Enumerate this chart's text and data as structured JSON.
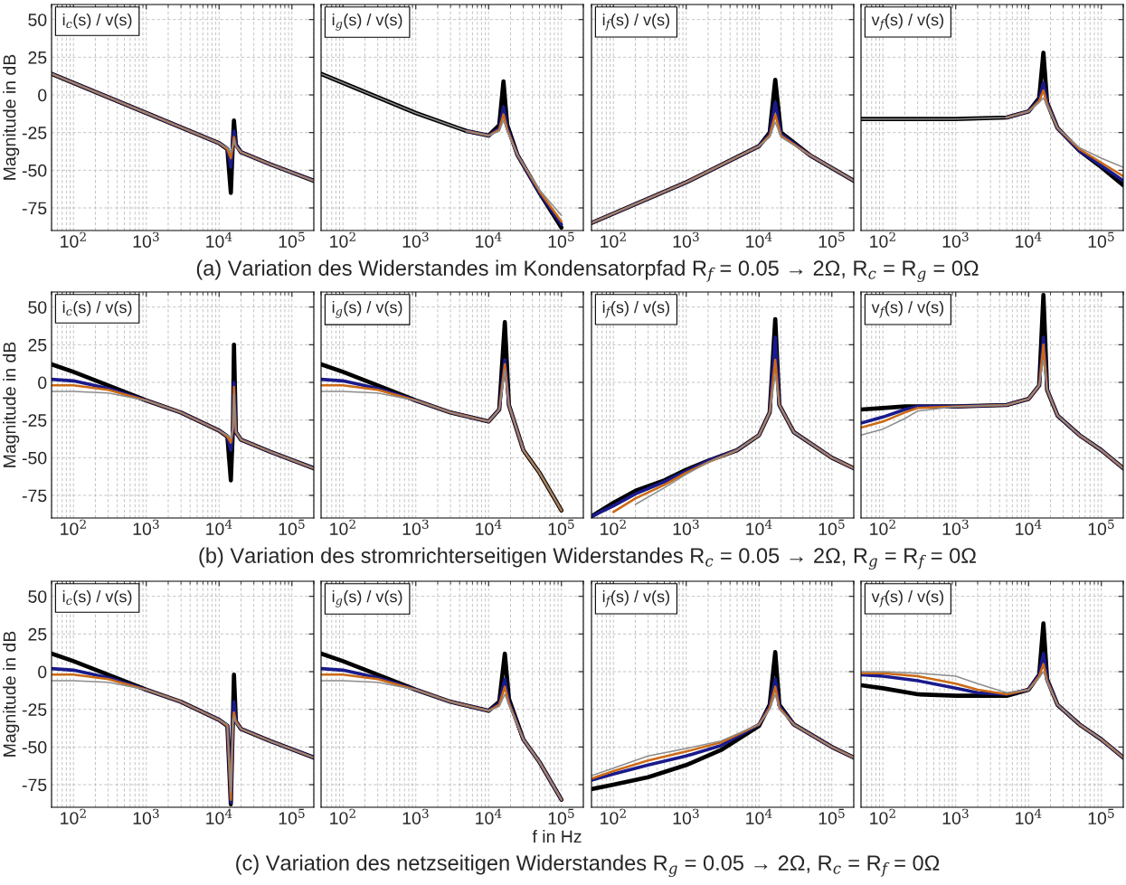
{
  "chart_data": [
    {
      "type": "line",
      "ylabel": "Magnitude in dB",
      "annotations": [
        "i$_{c}$(s) / v(s)",
        "(a) Variation des Widerstandes im Kondensatorpfad R$_{f}$ = 0.05 → 2Ω, R$_{c}$ = R$_{g}$ = 0Ω"
      ],
      "log": "x",
      "grid": true,
      "xlim": [
        50,
        200000
      ],
      "ylim": [
        -90,
        60
      ],
      "xticks": [
        {
          "value": 100,
          "label": "10$^{2}$"
        },
        {
          "value": 1000,
          "label": "10$^{3}$"
        },
        {
          "value": 10000,
          "label": "10$^{4}$"
        },
        {
          "value": 100000,
          "label": "10$^{5}$"
        }
      ],
      "yticks": [
        -75,
        -50,
        -25,
        0,
        25,
        50
      ],
      "x": [
        50,
        1000,
        10000,
        13000,
        14500,
        15500,
        16000,
        17000,
        20000,
        50000,
        200000
      ],
      "series": [
        {
          "color": "#000000",
          "values": [
            14,
            -12,
            -32,
            -36,
            -65,
            -30,
            -17,
            -33,
            -38,
            -46,
            -57
          ]
        },
        {
          "color": "#1a1a8c",
          "values": [
            14,
            -12,
            -32,
            -36,
            -48,
            -32,
            -24,
            -33,
            -38,
            -46,
            -57
          ]
        },
        {
          "color": "#cc6a14",
          "values": [
            14,
            -12,
            -32,
            -36,
            -42,
            -33,
            -28,
            -34,
            -38,
            -46,
            -57
          ]
        },
        {
          "color": "#8c8c8c",
          "values": [
            14,
            -12,
            -32,
            -35,
            -38,
            -33,
            -30,
            -34,
            -38,
            -46,
            -57
          ]
        }
      ]
    },
    {
      "type": "line",
      "annotations": [
        "i$_{g}$(s) / v(s)"
      ],
      "log": "x",
      "grid": true,
      "tick_labels": "x",
      "xlim": [
        50,
        200000
      ],
      "ylim": [
        -90,
        60
      ],
      "xticks": [
        {
          "value": 100,
          "label": "10$^{2}$"
        },
        {
          "value": 1000,
          "label": "10$^{3}$"
        },
        {
          "value": 10000,
          "label": "10$^{4}$"
        },
        {
          "value": 100000,
          "label": "10$^{5}$"
        }
      ],
      "yticks": [
        -75,
        -50,
        -25,
        0,
        25,
        50
      ],
      "x": [
        50,
        1000,
        5000,
        10000,
        14000,
        16000,
        18000,
        25000,
        50000,
        100000
      ],
      "series": [
        {
          "color": "#000000",
          "values": [
            14,
            -12,
            -24,
            -27,
            -20,
            9,
            -20,
            -40,
            -65,
            -88
          ]
        },
        {
          "color": "#1a1a8c",
          "values": [
            null,
            null,
            -24,
            -27,
            -22,
            -8,
            -22,
            -40,
            -65,
            -86
          ]
        },
        {
          "color": "#cc6a14",
          "values": [
            null,
            null,
            -24,
            -27,
            -23,
            -13,
            -23,
            -40,
            -64,
            -84
          ]
        },
        {
          "color": "#8c8c8c",
          "values": [
            14,
            -12,
            -24,
            -27,
            -24,
            -17,
            -24,
            -40,
            -63,
            -80
          ]
        }
      ]
    },
    {
      "type": "line",
      "annotations": [
        "i$_{f}$(s) / v(s)"
      ],
      "log": "x",
      "grid": true,
      "tick_labels": "x",
      "xlim": [
        50,
        200000
      ],
      "ylim": [
        -90,
        60
      ],
      "xticks": [
        {
          "value": 100,
          "label": "10$^{2}$"
        },
        {
          "value": 1000,
          "label": "10$^{3}$"
        },
        {
          "value": 10000,
          "label": "10$^{4}$"
        },
        {
          "value": 100000,
          "label": "10$^{5}$"
        }
      ],
      "yticks": [
        -75,
        -50,
        -25,
        0,
        25,
        50
      ],
      "x": [
        50,
        1000,
        10000,
        14000,
        16700,
        20000,
        50000,
        200000
      ],
      "series": [
        {
          "color": "#000000",
          "values": [
            -85,
            -58,
            -34,
            -25,
            10,
            -25,
            -40,
            -57
          ]
        },
        {
          "color": "#1a1a8c",
          "values": [
            -85,
            -58,
            -34,
            -26,
            -5,
            -26,
            -40,
            -57
          ]
        },
        {
          "color": "#cc6a14",
          "values": [
            -85,
            -58,
            -34,
            -27,
            -13,
            -27,
            -40,
            -57
          ]
        },
        {
          "color": "#8c8c8c",
          "values": [
            -85,
            -58,
            -34,
            -28,
            -18,
            -28,
            -40,
            -57
          ]
        }
      ]
    },
    {
      "type": "line",
      "annotations": [
        "v$_{f}$(s) / v(s)"
      ],
      "log": "x",
      "grid": true,
      "tick_labels": "x",
      "xlim": [
        50,
        200000
      ],
      "ylim": [
        -90,
        60
      ],
      "xticks": [
        {
          "value": 100,
          "label": "10$^{2}$"
        },
        {
          "value": 1000,
          "label": "10$^{3}$"
        },
        {
          "value": 10000,
          "label": "10$^{4}$"
        },
        {
          "value": 100000,
          "label": "10$^{5}$"
        }
      ],
      "yticks": [
        -75,
        -50,
        -25,
        0,
        25,
        50
      ],
      "x": [
        50,
        1000,
        5000,
        10000,
        14000,
        16000,
        18000,
        25000,
        50000,
        100000,
        200000
      ],
      "series": [
        {
          "color": "#000000",
          "values": [
            -16,
            -16,
            -15,
            -11,
            -2,
            28,
            -5,
            -22,
            -37,
            -48,
            -60
          ]
        },
        {
          "color": "#1a1a8c",
          "values": [
            null,
            null,
            -15,
            -11,
            -3,
            8,
            -5,
            -22,
            -37,
            -47,
            -57
          ]
        },
        {
          "color": "#cc6a14",
          "values": [
            null,
            null,
            -15,
            -11,
            -4,
            3,
            -6,
            -22,
            -36,
            -45,
            -54
          ]
        },
        {
          "color": "#8c8c8c",
          "values": [
            -16,
            -16,
            -15,
            -11,
            -5,
            -2,
            -7,
            -22,
            -35,
            -42,
            -48
          ]
        }
      ]
    },
    {
      "type": "line",
      "ylabel": "Magnitude in dB",
      "annotations": [
        "i$_{c}$(s) / v(s)",
        "(b) Variation des stromrichterseitigen Widerstandes R$_{c}$ = 0.05 → 2Ω, R$_{g}$ = R$_{f}$ = 0Ω"
      ],
      "log": "x",
      "grid": true,
      "xlim": [
        50,
        200000
      ],
      "ylim": [
        -90,
        60
      ],
      "xticks": [
        {
          "value": 100,
          "label": "10$^{2}$"
        },
        {
          "value": 1000,
          "label": "10$^{3}$"
        },
        {
          "value": 10000,
          "label": "10$^{4}$"
        },
        {
          "value": 100000,
          "label": "10$^{5}$"
        }
      ],
      "yticks": [
        -75,
        -50,
        -25,
        0,
        25,
        50
      ],
      "x": [
        50,
        100,
        300,
        1000,
        3000,
        10000,
        13000,
        14500,
        15500,
        16000,
        17000,
        20000,
        50000,
        200000
      ],
      "series": [
        {
          "color": "#000000",
          "values": [
            12,
            7,
            -2,
            -12,
            -20,
            -32,
            -36,
            -65,
            -30,
            25,
            -33,
            -38,
            -46,
            -57
          ]
        },
        {
          "color": "#1a1a8c",
          "values": [
            2,
            1,
            -4,
            -12,
            -20,
            -32,
            -36,
            -45,
            -30,
            0,
            -33,
            -38,
            -46,
            -57
          ]
        },
        {
          "color": "#cc6a14",
          "values": [
            -2,
            -2,
            -5,
            -12,
            -20,
            -32,
            -36,
            -40,
            -30,
            -3,
            -33,
            -38,
            -46,
            -57
          ]
        },
        {
          "color": "#8c8c8c",
          "values": [
            -6,
            -6,
            -7,
            -12,
            -20,
            -32,
            -35,
            -37,
            -30,
            -8,
            -33,
            -38,
            -46,
            -57
          ]
        }
      ]
    },
    {
      "type": "line",
      "annotations": [
        "i$_{g}$(s) / v(s)"
      ],
      "log": "x",
      "grid": true,
      "tick_labels": "x",
      "xlim": [
        50,
        200000
      ],
      "ylim": [
        -90,
        60
      ],
      "xticks": [
        {
          "value": 100,
          "label": "10$^{2}$"
        },
        {
          "value": 1000,
          "label": "10$^{3}$"
        },
        {
          "value": 10000,
          "label": "10$^{4}$"
        },
        {
          "value": 100000,
          "label": "10$^{5}$"
        }
      ],
      "yticks": [
        -75,
        -50,
        -25,
        0,
        25,
        50
      ],
      "x": [
        50,
        100,
        300,
        1000,
        3000,
        10000,
        14000,
        16700,
        19000,
        30000,
        50000,
        100000
      ],
      "series": [
        {
          "color": "#000000",
          "values": [
            12,
            7,
            -2,
            -12,
            -20,
            -26,
            -18,
            40,
            -15,
            -45,
            -60,
            -85
          ]
        },
        {
          "color": "#1a1a8c",
          "values": [
            2,
            1,
            -4,
            -12,
            -20,
            -26,
            -18,
            15,
            -15,
            -45,
            null,
            null
          ]
        },
        {
          "color": "#cc6a14",
          "values": [
            -2,
            -2,
            -5,
            -12,
            -20,
            -26,
            -18,
            12,
            -15,
            -45,
            -60,
            -85
          ]
        },
        {
          "color": "#8c8c8c",
          "values": [
            -6,
            -6,
            -7,
            -12,
            -20,
            -26,
            -18,
            8,
            -15,
            -45,
            -60,
            -85
          ]
        }
      ]
    },
    {
      "type": "line",
      "annotations": [
        "i$_{f}$(s) / v(s)"
      ],
      "log": "x",
      "grid": true,
      "tick_labels": "x",
      "xlim": [
        50,
        200000
      ],
      "ylim": [
        -90,
        60
      ],
      "xticks": [
        {
          "value": 100,
          "label": "10$^{2}$"
        },
        {
          "value": 1000,
          "label": "10$^{3}$"
        },
        {
          "value": 10000,
          "label": "10$^{4}$"
        },
        {
          "value": 100000,
          "label": "10$^{5}$"
        }
      ],
      "yticks": [
        -75,
        -50,
        -25,
        0,
        25,
        50
      ],
      "x": [
        50,
        100,
        200,
        500,
        1000,
        2000,
        5000,
        10000,
        14000,
        16700,
        19000,
        30000,
        100000,
        200000
      ],
      "series": [
        {
          "color": "#000000",
          "values": [
            -89,
            -80,
            -72,
            -65,
            -58,
            -52,
            -45,
            -35,
            -20,
            42,
            -15,
            -33,
            -50,
            -57
          ]
        },
        {
          "color": "#1a1a8c",
          "values": [
            -89,
            -82,
            -74,
            -66,
            -59,
            -52,
            -45,
            -35,
            -20,
            30,
            -15,
            -33,
            -50,
            -57
          ]
        },
        {
          "color": "#cc6a14",
          "values": [
            null,
            -86,
            -77,
            -68,
            -60,
            -53,
            -45,
            -35,
            -20,
            15,
            -15,
            -33,
            -50,
            -57
          ]
        },
        {
          "color": "#8c8c8c",
          "values": [
            null,
            null,
            -81,
            -70,
            -61,
            -53,
            -45,
            -35,
            -20,
            5,
            -15,
            -33,
            -50,
            -57
          ]
        }
      ]
    },
    {
      "type": "line",
      "annotations": [
        "v$_{f}$(s) / v(s)"
      ],
      "log": "x",
      "grid": true,
      "tick_labels": "x",
      "xlim": [
        50,
        200000
      ],
      "ylim": [
        -90,
        60
      ],
      "xticks": [
        {
          "value": 100,
          "label": "10$^{2}$"
        },
        {
          "value": 1000,
          "label": "10$^{3}$"
        },
        {
          "value": 10000,
          "label": "10$^{4}$"
        },
        {
          "value": 100000,
          "label": "10$^{5}$"
        }
      ],
      "yticks": [
        -75,
        -50,
        -25,
        0,
        25,
        50
      ],
      "x": [
        50,
        100,
        200,
        300,
        1000,
        5000,
        10000,
        14000,
        16000,
        18000,
        25000,
        50000,
        100000,
        200000
      ],
      "series": [
        {
          "color": "#000000",
          "values": [
            -18,
            -17,
            -16,
            -16,
            -16,
            -15,
            -11,
            -2,
            58,
            -5,
            -22,
            -35,
            -45,
            -57
          ]
        },
        {
          "color": "#1a1a8c",
          "values": [
            -27,
            -23,
            -18,
            -16,
            -16,
            -15,
            -11,
            -2,
            30,
            -5,
            -22,
            -35,
            -45,
            -57
          ]
        },
        {
          "color": "#cc6a14",
          "values": [
            -30,
            -26,
            -20,
            -17,
            -16,
            -15,
            -11,
            -2,
            25,
            -5,
            -22,
            -35,
            -45,
            -57
          ]
        },
        {
          "color": "#8c8c8c",
          "values": [
            -35,
            -31,
            -24,
            -19,
            -16,
            -15,
            -11,
            -2,
            15,
            -5,
            -22,
            -35,
            -45,
            -57
          ]
        }
      ]
    },
    {
      "type": "line",
      "ylabel": "Magnitude in dB",
      "annotations": [
        "i$_{c}$(s) / v(s)",
        "(c) Variation des netzseitigen Widerstandes R$_{g}$ = 0.05 → 2Ω, R$_{c}$ = R$_{f}$ = 0Ω"
      ],
      "log": "x",
      "grid": true,
      "xlim": [
        50,
        200000
      ],
      "ylim": [
        -90,
        60
      ],
      "xticks": [
        {
          "value": 100,
          "label": "10$^{2}$"
        },
        {
          "value": 1000,
          "label": "10$^{3}$"
        },
        {
          "value": 10000,
          "label": "10$^{4}$"
        },
        {
          "value": 100000,
          "label": "10$^{5}$"
        }
      ],
      "yticks": [
        -75,
        -50,
        -25,
        0,
        25,
        50
      ],
      "x": [
        50,
        100,
        300,
        1000,
        3000,
        10000,
        13000,
        14500,
        15500,
        16000,
        17000,
        20000,
        50000,
        200000
      ],
      "series": [
        {
          "color": "#000000",
          "values": [
            12,
            7,
            -2,
            -12,
            -20,
            -32,
            -36,
            -88,
            -30,
            -2,
            -33,
            -38,
            -46,
            -57
          ]
        },
        {
          "color": "#1a1a8c",
          "values": [
            2,
            1,
            -4,
            -12,
            -20,
            -32,
            -36,
            -87,
            -30,
            -20,
            -33,
            -38,
            -46,
            -57
          ]
        },
        {
          "color": "#cc6a14",
          "values": [
            -2,
            -2,
            -5,
            -12,
            -20,
            -32,
            -36,
            -85,
            -32,
            -27,
            -33,
            -38,
            -46,
            -57
          ]
        },
        {
          "color": "#8c8c8c",
          "values": [
            -6,
            -6,
            -7,
            -12,
            -20,
            -32,
            -35,
            -80,
            -33,
            -30,
            -34,
            -38,
            -46,
            -57
          ]
        }
      ]
    },
    {
      "type": "line",
      "xlabel": "f in Hz",
      "annotations": [
        "i$_{g}$(s) / v(s)"
      ],
      "log": "x",
      "grid": true,
      "tick_labels": "x",
      "xlim": [
        50,
        200000
      ],
      "ylim": [
        -90,
        60
      ],
      "xticks": [
        {
          "value": 100,
          "label": "10$^{2}$"
        },
        {
          "value": 1000,
          "label": "10$^{3}$"
        },
        {
          "value": 10000,
          "label": "10$^{4}$"
        },
        {
          "value": 100000,
          "label": "10$^{5}$"
        }
      ],
      "yticks": [
        -75,
        -50,
        -25,
        0,
        25,
        50
      ],
      "x": [
        50,
        100,
        300,
        1000,
        3000,
        10000,
        14000,
        16700,
        19000,
        30000,
        50000,
        100000
      ],
      "series": [
        {
          "color": "#000000",
          "values": [
            12,
            7,
            -2,
            -12,
            -20,
            -26,
            -20,
            12,
            -18,
            -45,
            -60,
            -85
          ]
        },
        {
          "color": "#1a1a8c",
          "values": [
            2,
            1,
            -4,
            -12,
            -20,
            -26,
            -21,
            -5,
            -20,
            -45,
            -60,
            -85
          ]
        },
        {
          "color": "#cc6a14",
          "values": [
            -2,
            -2,
            -5,
            -12,
            -20,
            -26,
            -22,
            -10,
            -21,
            -45,
            -60,
            -85
          ]
        },
        {
          "color": "#8c8c8c",
          "values": [
            -6,
            -6,
            -7,
            -12,
            -20,
            -26,
            -23,
            -15,
            -22,
            -45,
            -60,
            -85
          ]
        }
      ]
    },
    {
      "type": "line",
      "annotations": [
        "i$_{f}$(s) / v(s)"
      ],
      "log": "x",
      "grid": true,
      "tick_labels": "x",
      "xlim": [
        50,
        200000
      ],
      "ylim": [
        -90,
        60
      ],
      "xticks": [
        {
          "value": 100,
          "label": "10$^{2}$"
        },
        {
          "value": 1000,
          "label": "10$^{3}$"
        },
        {
          "value": 10000,
          "label": "10$^{4}$"
        },
        {
          "value": 100000,
          "label": "10$^{5}$"
        }
      ],
      "yticks": [
        -75,
        -50,
        -25,
        0,
        25,
        50
      ],
      "x": [
        50,
        100,
        300,
        1000,
        3000,
        10000,
        14000,
        16700,
        19000,
        30000,
        100000,
        200000
      ],
      "series": [
        {
          "color": "#000000",
          "values": [
            -78,
            -75,
            -70,
            -62,
            -52,
            -36,
            -22,
            13,
            -22,
            -35,
            -50,
            -57
          ]
        },
        {
          "color": "#1a1a8c",
          "values": [
            -72,
            -68,
            -62,
            -56,
            -49,
            -35,
            -23,
            -5,
            -23,
            -35,
            -50,
            -57
          ]
        },
        {
          "color": "#cc6a14",
          "values": [
            -71,
            -66,
            -59,
            -53,
            -47,
            -35,
            -24,
            -10,
            -24,
            -35,
            -50,
            -57
          ]
        },
        {
          "color": "#8c8c8c",
          "values": [
            -69,
            -64,
            -56,
            -51,
            -46,
            -35,
            -25,
            -15,
            -25,
            -35,
            -50,
            -57
          ]
        }
      ]
    },
    {
      "type": "line",
      "annotations": [
        "v$_{f}$(s) / v(s)"
      ],
      "log": "x",
      "grid": true,
      "tick_labels": "x",
      "xlim": [
        50,
        200000
      ],
      "ylim": [
        -90,
        60
      ],
      "xticks": [
        {
          "value": 100,
          "label": "10$^{2}$"
        },
        {
          "value": 1000,
          "label": "10$^{3}$"
        },
        {
          "value": 10000,
          "label": "10$^{4}$"
        },
        {
          "value": 100000,
          "label": "10$^{5}$"
        }
      ],
      "yticks": [
        -75,
        -50,
        -25,
        0,
        25,
        50
      ],
      "x": [
        50,
        100,
        300,
        1000,
        2000,
        5000,
        10000,
        14000,
        16000,
        18000,
        25000,
        50000,
        100000,
        200000
      ],
      "series": [
        {
          "color": "#000000",
          "values": [
            -9,
            -11,
            -15,
            -16,
            -16,
            -16,
            -12,
            -2,
            32,
            -5,
            -22,
            -35,
            -45,
            -57
          ]
        },
        {
          "color": "#1a1a8c",
          "values": [
            -2,
            -3,
            -6,
            -11,
            -14,
            -15,
            -12,
            -2,
            12,
            -5,
            -22,
            -35,
            -45,
            -57
          ]
        },
        {
          "color": "#cc6a14",
          "values": [
            -1,
            -1,
            -3,
            -8,
            -12,
            -15,
            -12,
            -3,
            5,
            -6,
            -22,
            -35,
            -45,
            -57
          ]
        },
        {
          "color": "#8c8c8c",
          "values": [
            0,
            0,
            -1,
            -3,
            -8,
            -14,
            -12,
            -4,
            0,
            -7,
            -22,
            -35,
            -45,
            -57
          ]
        }
      ]
    }
  ]
}
